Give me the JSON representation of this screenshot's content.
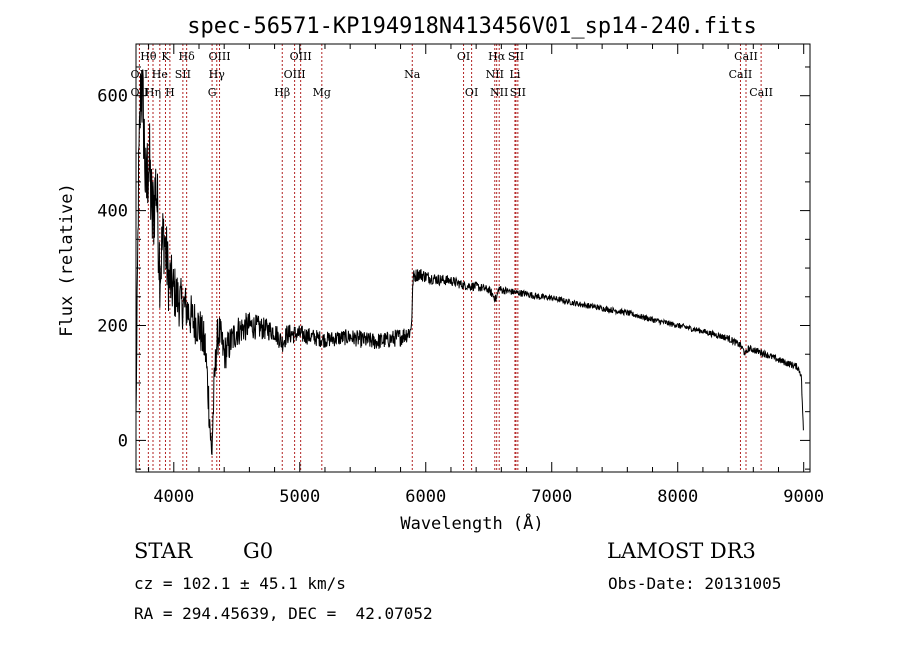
{
  "chart_data": {
    "type": "line",
    "title": "spec-56571-KP194918N413456V01_sp14-240.fits",
    "xlabel": "Wavelength (Å)",
    "ylabel": "Flux (relative)",
    "xlim": [
      3700,
      9050
    ],
    "ylim": [
      -55,
      690
    ],
    "xticks": [
      4000,
      5000,
      6000,
      7000,
      8000,
      9000
    ],
    "yticks": [
      0,
      200,
      400,
      600
    ],
    "line_color": "#000000",
    "marker_color": "#b22222",
    "spectrum_anchors": {
      "x": [
        3700,
        3720,
        3740,
        3760,
        3780,
        3800,
        3830,
        3860,
        3890,
        3920,
        3960,
        4000,
        4050,
        4100,
        4150,
        4200,
        4250,
        4280,
        4300,
        4320,
        4340,
        4360,
        4400,
        4450,
        4500,
        4600,
        4700,
        4800,
        4860,
        4900,
        5000,
        5100,
        5200,
        5300,
        5400,
        5500,
        5600,
        5700,
        5800,
        5880,
        5890,
        5900,
        5950,
        6000,
        6100,
        6200,
        6300,
        6400,
        6500,
        6560,
        6580,
        6600,
        6700,
        6800,
        6900,
        7000,
        7200,
        7400,
        7600,
        7800,
        8000,
        8200,
        8400,
        8500,
        8540,
        8560,
        8600,
        8700,
        8800,
        8900,
        8950,
        8980,
        8990,
        9000
      ],
      "y": [
        40,
        450,
        630,
        560,
        420,
        500,
        380,
        450,
        300,
        360,
        280,
        260,
        240,
        230,
        210,
        200,
        160,
        60,
        -30,
        90,
        170,
        190,
        150,
        170,
        190,
        200,
        195,
        190,
        170,
        185,
        185,
        180,
        175,
        178,
        180,
        175,
        172,
        175,
        180,
        190,
        220,
        285,
        290,
        285,
        280,
        278,
        270,
        268,
        262,
        245,
        265,
        262,
        258,
        255,
        250,
        248,
        238,
        230,
        222,
        210,
        200,
        190,
        178,
        165,
        150,
        160,
        158,
        150,
        140,
        132,
        128,
        115,
        60,
        5
      ],
      "noise": [
        20,
        60,
        80,
        90,
        90,
        90,
        85,
        80,
        75,
        70,
        60,
        50,
        45,
        40,
        40,
        38,
        40,
        40,
        40,
        38,
        36,
        34,
        32,
        30,
        28,
        24,
        20,
        18,
        18,
        18,
        16,
        15,
        14,
        14,
        14,
        15,
        15,
        15,
        16,
        16,
        16,
        12,
        12,
        11,
        10,
        9,
        8,
        8,
        7,
        7,
        7,
        7,
        6,
        6,
        6,
        5,
        5,
        5,
        5,
        5,
        5,
        5,
        6,
        6,
        6,
        6,
        6,
        6,
        6,
        6,
        6,
        6,
        4,
        2
      ]
    },
    "spectral_lines": [
      {
        "label": "OII",
        "wavelength": 3727,
        "row": 1
      },
      {
        "label": "OII",
        "wavelength": 3727,
        "row": 2
      },
      {
        "label": "Hθ",
        "wavelength": 3798,
        "row": 0
      },
      {
        "label": "Hη",
        "wavelength": 3835,
        "row": 2
      },
      {
        "label": "He",
        "wavelength": 3889,
        "row": 1
      },
      {
        "label": "K",
        "wavelength": 3934,
        "row": 0
      },
      {
        "label": "H",
        "wavelength": 3969,
        "row": 2
      },
      {
        "label": "SII",
        "wavelength": 4072,
        "row": 1
      },
      {
        "label": "Hδ",
        "wavelength": 4102,
        "row": 0
      },
      {
        "label": "OIII",
        "wavelength": 4363,
        "row": 0
      },
      {
        "label": "Hγ",
        "wavelength": 4341,
        "row": 1
      },
      {
        "label": "G",
        "wavelength": 4304,
        "row": 2
      },
      {
        "label": "Hβ",
        "wavelength": 4861,
        "row": 2
      },
      {
        "label": "OIII",
        "wavelength": 4959,
        "row": 1
      },
      {
        "label": "OIII",
        "wavelength": 5007,
        "row": 0
      },
      {
        "label": "Mg",
        "wavelength": 5175,
        "row": 2
      },
      {
        "label": "Na",
        "wavelength": 5893,
        "row": 1
      },
      {
        "label": "OI",
        "wavelength": 6300,
        "row": 0
      },
      {
        "label": "OI",
        "wavelength": 6364,
        "row": 2
      },
      {
        "label": "NII",
        "wavelength": 6548,
        "row": 1
      },
      {
        "label": "Hα",
        "wavelength": 6563,
        "row": 0
      },
      {
        "label": "NII",
        "wavelength": 6583,
        "row": 2
      },
      {
        "label": "SII",
        "wavelength": 6716,
        "row": 0
      },
      {
        "label": "Li",
        "wavelength": 6708,
        "row": 1
      },
      {
        "label": "SII",
        "wavelength": 6731,
        "row": 2
      },
      {
        "label": "CaII",
        "wavelength": 8498,
        "row": 1
      },
      {
        "label": "CaII",
        "wavelength": 8542,
        "row": 0
      },
      {
        "label": "CaII",
        "wavelength": 8662,
        "row": 2
      }
    ]
  },
  "info": {
    "object_class": "STAR",
    "subclass": "G0",
    "survey": "LAMOST DR3",
    "redshift": "cz = 102.1 ± 45.1 km/s",
    "obs_date": "Obs-Date: 20131005",
    "coords": "RA = 294.45639, DEC =  42.07052"
  }
}
